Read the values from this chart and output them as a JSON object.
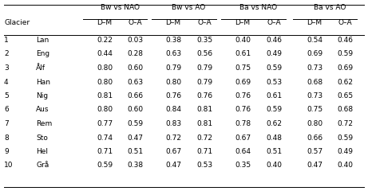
{
  "col_groups": [
    "Bw vs NAO",
    "Bw vs AO",
    "Ba vs NAO",
    "Ba vs AO"
  ],
  "sub_cols": [
    "D–M",
    "O–A"
  ],
  "glacier_nums": [
    "1",
    "2",
    "3",
    "4",
    "5",
    "6",
    "7",
    "8",
    "9",
    "10"
  ],
  "glacier_names": [
    "Lan",
    "Eng",
    "Ålf",
    "Han",
    "Nig",
    "Aus",
    "Rem",
    "Sto",
    "Hel",
    "Grå"
  ],
  "data": [
    [
      0.22,
      0.03,
      0.38,
      0.35,
      0.4,
      0.46,
      0.54,
      0.46
    ],
    [
      0.44,
      0.28,
      0.63,
      0.56,
      0.61,
      0.49,
      0.69,
      0.59
    ],
    [
      0.8,
      0.6,
      0.79,
      0.79,
      0.75,
      0.59,
      0.73,
      0.69
    ],
    [
      0.8,
      0.63,
      0.8,
      0.79,
      0.69,
      0.53,
      0.68,
      0.62
    ],
    [
      0.81,
      0.66,
      0.76,
      0.76,
      0.76,
      0.61,
      0.73,
      0.65
    ],
    [
      0.8,
      0.6,
      0.84,
      0.81,
      0.76,
      0.59,
      0.75,
      0.68
    ],
    [
      0.77,
      0.59,
      0.83,
      0.81,
      0.78,
      0.62,
      0.8,
      0.72
    ],
    [
      0.74,
      0.47,
      0.72,
      0.72,
      0.67,
      0.48,
      0.66,
      0.59
    ],
    [
      0.71,
      0.51,
      0.67,
      0.71,
      0.64,
      0.51,
      0.57,
      0.49
    ],
    [
      0.59,
      0.38,
      0.47,
      0.53,
      0.35,
      0.4,
      0.47,
      0.4
    ]
  ],
  "bg_color": "#ffffff",
  "text_color": "#000000",
  "font_size": 6.5,
  "line_color": "#000000",
  "fig_width": 4.61,
  "fig_height": 2.4,
  "dpi": 100
}
